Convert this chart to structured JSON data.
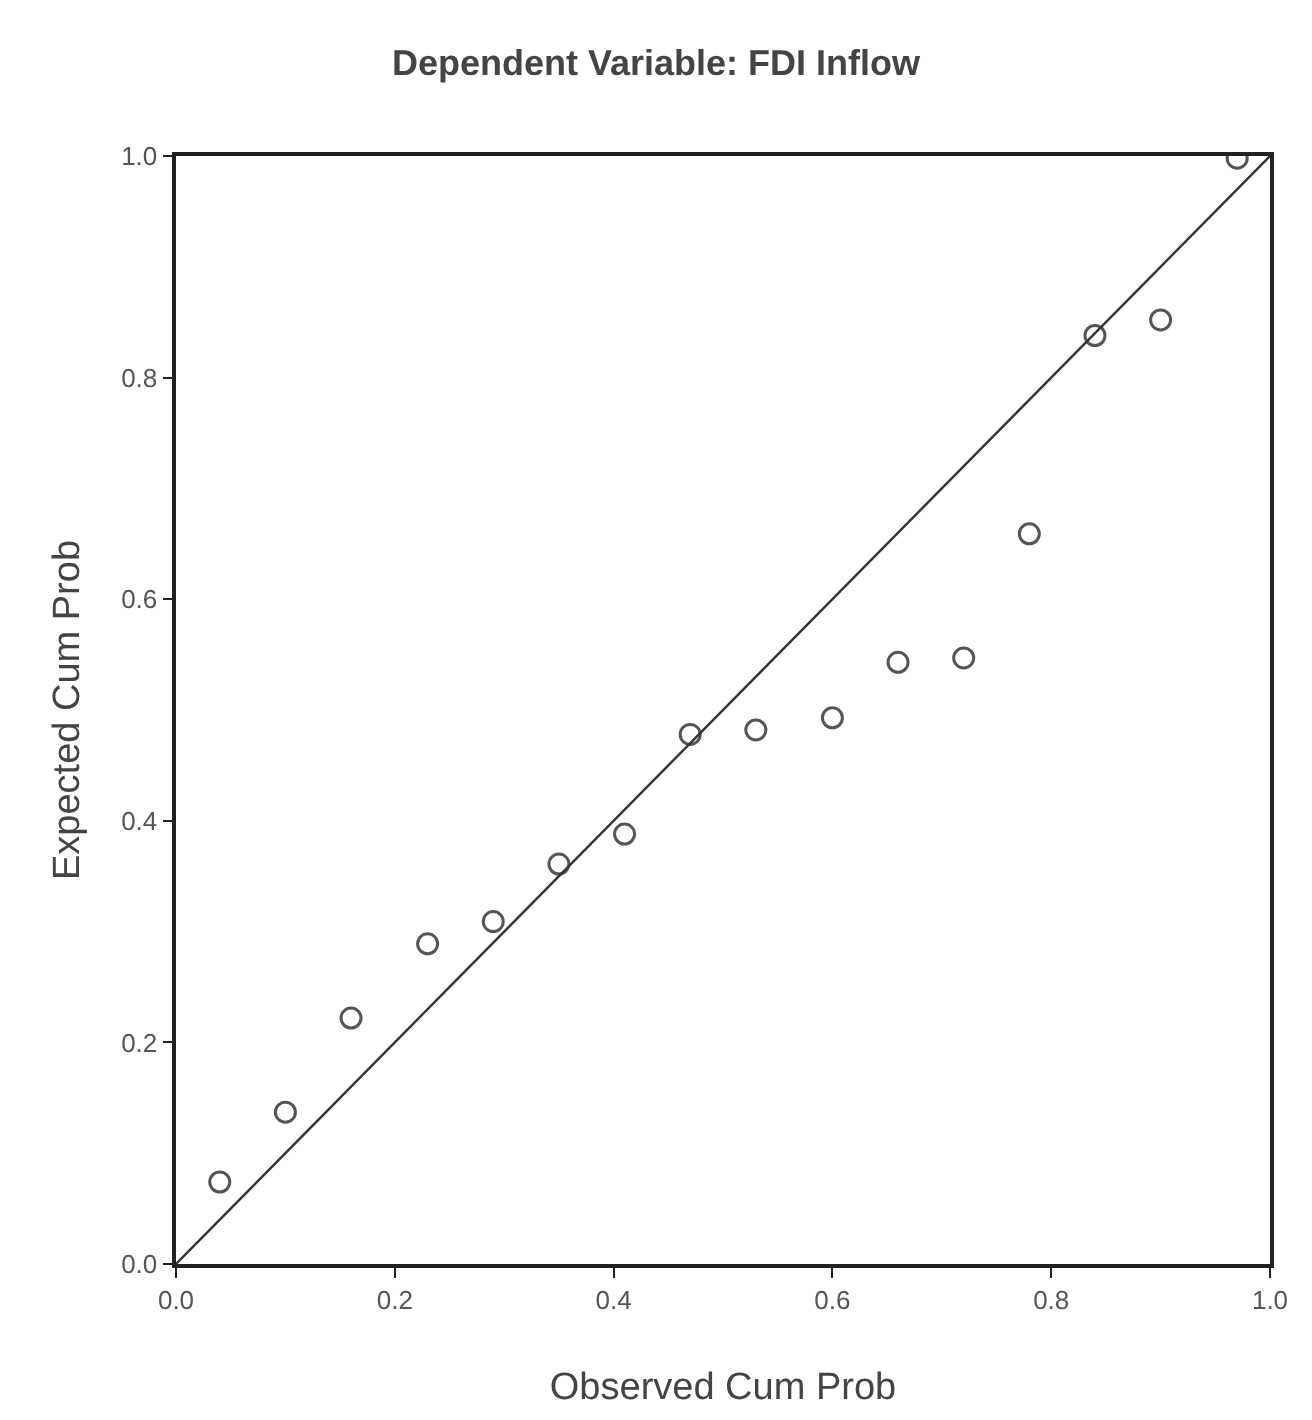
{
  "chart_data": {
    "type": "scatter",
    "title": "Dependent Variable: FDI Inflow",
    "xlabel": "Observed Cum Prob",
    "ylabel": "Expected Cum Prob",
    "xlim": [
      0,
      1
    ],
    "ylim": [
      0,
      1
    ],
    "xticks": [
      {
        "value": 0,
        "label": "0.0"
      },
      0.2,
      0.4,
      0.6,
      0.8,
      {
        "value": 1,
        "label": "1.0"
      }
    ],
    "yticks": [
      {
        "value": 0,
        "label": "0.0"
      },
      0.2,
      0.4,
      0.6,
      0.8,
      {
        "value": 1,
        "label": "1.0"
      }
    ],
    "grid": false,
    "marker": "circle",
    "series": [
      {
        "color": "#555555",
        "x": [
          0.04,
          0.1,
          0.16,
          0.23,
          0.29,
          0.35,
          0.41,
          0.47,
          0.53,
          0.6,
          0.66,
          0.72,
          0.78,
          0.84,
          0.9,
          0.97
        ],
        "values": [
          0.074,
          0.137,
          0.222,
          0.289,
          0.309,
          0.361,
          0.388,
          0.478,
          0.482,
          0.493,
          0.543,
          0.547,
          0.659,
          0.838,
          0.852,
          0.998
        ]
      },
      {
        "type": "line",
        "marker": "none",
        "color": "#333333",
        "x": [
          0,
          1
        ],
        "values": [
          0,
          1
        ]
      }
    ]
  }
}
